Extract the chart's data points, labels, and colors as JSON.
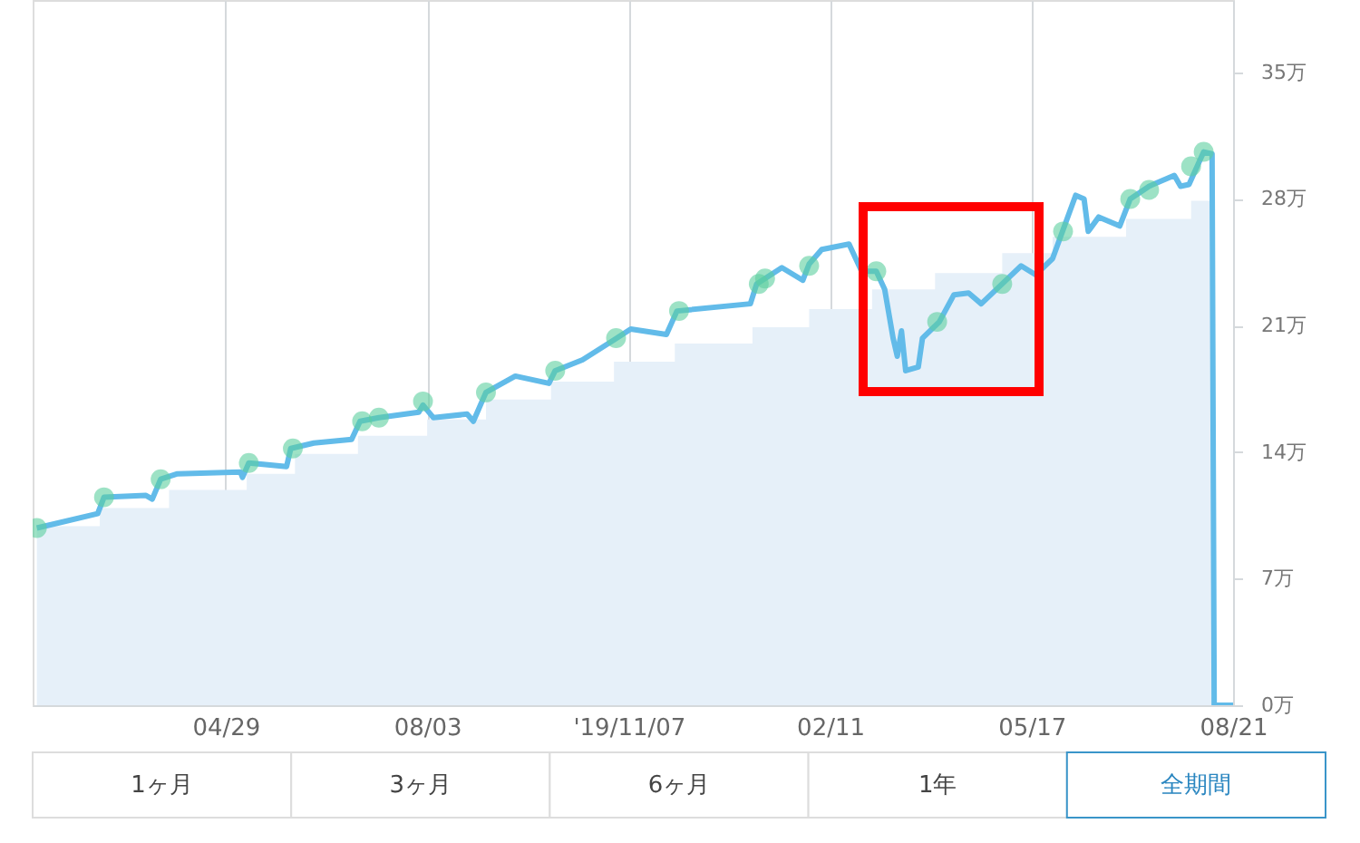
{
  "chart_data": {
    "type": "line",
    "xlim": [
      "2019-01-27",
      "2020-08-21"
    ],
    "xticks": [
      {
        "value": "2019-04-29",
        "label": "04/29"
      },
      {
        "value": "2019-08-03",
        "label": "08/03"
      },
      {
        "value": "2019-11-07",
        "label": "'19/11/07"
      },
      {
        "value": "2020-02-11",
        "label": "02/11"
      },
      {
        "value": "2020-05-17",
        "label": "05/17"
      },
      {
        "value": "2020-08-21",
        "label": "08/21"
      }
    ],
    "ylim": [
      0,
      39
    ],
    "yticks": [
      {
        "value": 0,
        "label": "0万"
      },
      {
        "value": 7,
        "label": "7万"
      },
      {
        "value": 14,
        "label": "14万"
      },
      {
        "value": 21,
        "label": "21万"
      },
      {
        "value": 28,
        "label": "28万"
      },
      {
        "value": 35,
        "label": "35万"
      }
    ],
    "grid": "x",
    "series": [
      {
        "type": "area",
        "color": "#e6f0f9",
        "x": [
          "2019-01-29",
          "2019-02-28",
          "2019-04-02",
          "2019-05-09",
          "2019-06-01",
          "2019-07-01",
          "2019-08-03",
          "2019-08-31",
          "2019-10-01",
          "2019-10-31",
          "2019-11-29",
          "2020-01-05",
          "2020-02-01",
          "2020-03-02",
          "2020-04-01",
          "2020-05-03",
          "2020-05-27",
          "2020-07-01",
          "2020-08-01",
          "2020-08-11",
          "2020-08-12"
        ],
        "values": [
          9.9,
          10.9,
          11.9,
          12.8,
          13.9,
          14.9,
          15.8,
          16.9,
          17.9,
          19.0,
          20.0,
          20.9,
          21.9,
          23.0,
          23.9,
          25.0,
          25.9,
          26.9,
          27.9,
          27.9,
          0
        ]
      },
      {
        "color": "#62bbe9",
        "x": [
          "2019-01-29",
          "2019-02-09",
          "2019-02-27",
          "2019-03-02",
          "2019-03-22",
          "2019-03-25",
          "2019-03-29",
          "2019-04-06",
          "2019-05-06",
          "2019-05-07",
          "2019-05-10",
          "2019-05-28",
          "2019-05-30",
          "2019-06-10",
          "2019-06-28",
          "2019-07-02",
          "2019-07-11",
          "2019-07-30",
          "2019-08-01",
          "2019-08-06",
          "2019-08-22",
          "2019-08-25",
          "2019-08-31",
          "2019-09-14",
          "2019-09-30",
          "2019-10-03",
          "2019-10-16",
          "2019-10-31",
          "2019-11-08",
          "2019-11-25",
          "2019-11-30",
          "2020-01-04",
          "2020-01-07",
          "2020-01-19",
          "2020-01-29",
          "2020-02-01",
          "2020-02-07",
          "2020-02-20",
          "2020-02-26",
          "2020-03-04",
          "2020-03-08",
          "2020-03-12",
          "2020-03-14",
          "2020-03-16",
          "2020-03-18",
          "2020-03-24",
          "2020-03-26",
          "2020-04-03",
          "2020-04-10",
          "2020-04-17",
          "2020-04-23",
          "2020-05-03",
          "2020-05-12",
          "2020-05-19",
          "2020-05-27",
          "2020-06-07",
          "2020-06-11",
          "2020-06-13",
          "2020-06-18",
          "2020-06-28",
          "2020-07-03",
          "2020-07-12",
          "2020-07-24",
          "2020-07-27",
          "2020-07-31",
          "2020-08-07",
          "2020-08-11",
          "2020-08-12",
          "2020-08-21"
        ],
        "values": [
          9.8,
          10.1,
          10.6,
          11.5,
          11.6,
          11.4,
          12.5,
          12.8,
          12.9,
          12.6,
          13.4,
          13.2,
          14.2,
          14.5,
          14.7,
          15.7,
          15.9,
          16.2,
          16.6,
          15.9,
          16.1,
          15.7,
          17.3,
          18.2,
          17.8,
          18.5,
          19.1,
          20.2,
          20.8,
          20.5,
          21.8,
          22.2,
          23.3,
          24.2,
          23.5,
          24.4,
          25.2,
          25.5,
          24.0,
          24.0,
          23.0,
          20.3,
          19.3,
          20.7,
          18.5,
          18.7,
          20.3,
          21.2,
          22.7,
          22.8,
          22.2,
          23.3,
          24.3,
          23.8,
          24.7,
          28.2,
          28.0,
          26.2,
          27.0,
          26.5,
          28.0,
          28.7,
          29.3,
          28.7,
          28.8,
          30.6,
          30.5,
          0,
          0
        ]
      },
      {
        "type": "scatter",
        "color": "#5ccf9e",
        "marker": "circle",
        "x": [
          "2019-01-29",
          "2019-03-02",
          "2019-03-29",
          "2019-05-10",
          "2019-05-31",
          "2019-07-03",
          "2019-07-11",
          "2019-08-01",
          "2019-08-31",
          "2019-10-03",
          "2019-11-01",
          "2019-12-01",
          "2020-01-08",
          "2020-01-11",
          "2020-02-01",
          "2020-03-04",
          "2020-04-02",
          "2020-05-03",
          "2020-06-01",
          "2020-07-03",
          "2020-07-12",
          "2020-08-01",
          "2020-08-07"
        ],
        "values": [
          9.8,
          11.5,
          12.5,
          13.4,
          14.2,
          15.7,
          15.9,
          16.8,
          17.3,
          18.5,
          20.3,
          21.8,
          23.3,
          23.6,
          24.3,
          24.0,
          21.2,
          23.3,
          26.2,
          28.0,
          28.5,
          29.8,
          30.6
        ]
      }
    ],
    "annotations": [
      "1ヶ月",
      "3ヶ月",
      "6ヶ月",
      "1年",
      "全期間"
    ]
  }
}
